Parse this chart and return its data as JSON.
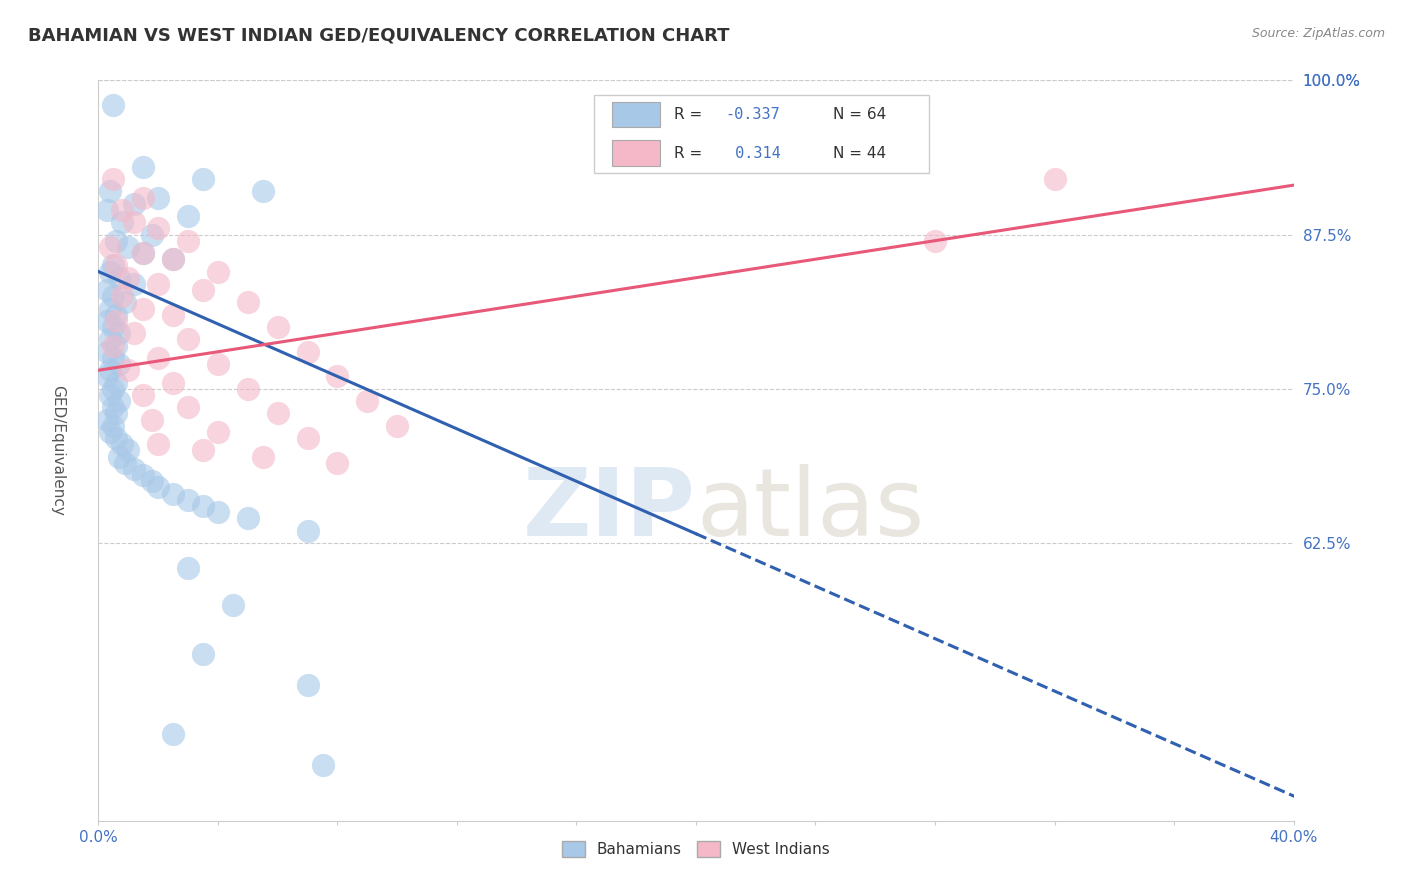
{
  "title": "BAHAMIAN VS WEST INDIAN GED/EQUIVALENCY CORRELATION CHART",
  "source": "Source: ZipAtlas.com",
  "xlabel_bahamians": "Bahamians",
  "xlabel_west_indians": "West Indians",
  "ylabel": "GED/Equivalency",
  "xlim": [
    0.0,
    40.0
  ],
  "ylim": [
    40.0,
    100.0
  ],
  "xticks": [
    0.0,
    4.0,
    8.0,
    12.0,
    16.0,
    20.0,
    24.0,
    28.0,
    32.0,
    36.0,
    40.0
  ],
  "yticks": [
    62.5,
    75.0,
    87.5,
    100.0
  ],
  "ytick_labels": [
    "62.5%",
    "75.0%",
    "87.5%",
    "100.0%"
  ],
  "xtick_labels": [
    "0.0%",
    "",
    "",
    "",
    "",
    "",
    "",
    "",
    "",
    "",
    "40.0%"
  ],
  "blue_R": -0.337,
  "blue_N": 64,
  "pink_R": 0.314,
  "pink_N": 44,
  "blue_color": "#a8c8e8",
  "pink_color": "#f4b8c8",
  "blue_line_color": "#3060b0",
  "pink_line_color": "#e85878",
  "blue_line_x0": 0.0,
  "blue_line_y0": 84.5,
  "blue_line_x1": 40.0,
  "blue_line_y1": 42.0,
  "blue_solid_end": 20.0,
  "pink_line_x0": 0.0,
  "pink_line_y0": 76.5,
  "pink_line_x1": 40.0,
  "pink_line_y1": 91.5,
  "blue_scatter": [
    [
      0.5,
      98.0
    ],
    [
      1.5,
      93.0
    ],
    [
      3.5,
      92.0
    ],
    [
      5.5,
      91.0
    ],
    [
      0.4,
      91.0
    ],
    [
      1.2,
      90.0
    ],
    [
      2.0,
      90.5
    ],
    [
      3.0,
      89.0
    ],
    [
      0.3,
      89.5
    ],
    [
      0.8,
      88.5
    ],
    [
      1.8,
      87.5
    ],
    [
      0.6,
      87.0
    ],
    [
      1.0,
      86.5
    ],
    [
      1.5,
      86.0
    ],
    [
      2.5,
      85.5
    ],
    [
      0.5,
      85.0
    ],
    [
      0.4,
      84.5
    ],
    [
      0.7,
      84.0
    ],
    [
      1.2,
      83.5
    ],
    [
      0.3,
      83.0
    ],
    [
      0.5,
      82.5
    ],
    [
      0.9,
      82.0
    ],
    [
      0.4,
      81.5
    ],
    [
      0.6,
      81.0
    ],
    [
      0.3,
      80.5
    ],
    [
      0.5,
      80.0
    ],
    [
      0.7,
      79.5
    ],
    [
      0.4,
      79.0
    ],
    [
      0.6,
      78.5
    ],
    [
      0.3,
      78.0
    ],
    [
      0.5,
      77.5
    ],
    [
      0.7,
      77.0
    ],
    [
      0.4,
      76.5
    ],
    [
      0.3,
      76.0
    ],
    [
      0.6,
      75.5
    ],
    [
      0.5,
      75.0
    ],
    [
      0.4,
      74.5
    ],
    [
      0.7,
      74.0
    ],
    [
      0.5,
      73.5
    ],
    [
      0.6,
      73.0
    ],
    [
      0.3,
      72.5
    ],
    [
      0.5,
      72.0
    ],
    [
      0.4,
      71.5
    ],
    [
      0.6,
      71.0
    ],
    [
      0.8,
      70.5
    ],
    [
      1.0,
      70.0
    ],
    [
      0.7,
      69.5
    ],
    [
      0.9,
      69.0
    ],
    [
      1.2,
      68.5
    ],
    [
      1.5,
      68.0
    ],
    [
      1.8,
      67.5
    ],
    [
      2.0,
      67.0
    ],
    [
      2.5,
      66.5
    ],
    [
      3.0,
      66.0
    ],
    [
      3.5,
      65.5
    ],
    [
      4.0,
      65.0
    ],
    [
      5.0,
      64.5
    ],
    [
      7.0,
      63.5
    ],
    [
      3.0,
      60.5
    ],
    [
      4.5,
      57.5
    ],
    [
      3.5,
      53.5
    ],
    [
      7.0,
      51.0
    ],
    [
      2.5,
      47.0
    ],
    [
      7.5,
      44.5
    ]
  ],
  "pink_scatter": [
    [
      0.5,
      92.0
    ],
    [
      1.5,
      90.5
    ],
    [
      0.8,
      89.5
    ],
    [
      1.2,
      88.5
    ],
    [
      2.0,
      88.0
    ],
    [
      3.0,
      87.0
    ],
    [
      0.4,
      86.5
    ],
    [
      1.5,
      86.0
    ],
    [
      2.5,
      85.5
    ],
    [
      0.6,
      85.0
    ],
    [
      4.0,
      84.5
    ],
    [
      1.0,
      84.0
    ],
    [
      2.0,
      83.5
    ],
    [
      3.5,
      83.0
    ],
    [
      0.8,
      82.5
    ],
    [
      5.0,
      82.0
    ],
    [
      1.5,
      81.5
    ],
    [
      2.5,
      81.0
    ],
    [
      0.6,
      80.5
    ],
    [
      6.0,
      80.0
    ],
    [
      1.2,
      79.5
    ],
    [
      3.0,
      79.0
    ],
    [
      0.5,
      78.5
    ],
    [
      7.0,
      78.0
    ],
    [
      2.0,
      77.5
    ],
    [
      4.0,
      77.0
    ],
    [
      1.0,
      76.5
    ],
    [
      8.0,
      76.0
    ],
    [
      2.5,
      75.5
    ],
    [
      5.0,
      75.0
    ],
    [
      1.5,
      74.5
    ],
    [
      9.0,
      74.0
    ],
    [
      3.0,
      73.5
    ],
    [
      6.0,
      73.0
    ],
    [
      1.8,
      72.5
    ],
    [
      10.0,
      72.0
    ],
    [
      4.0,
      71.5
    ],
    [
      7.0,
      71.0
    ],
    [
      2.0,
      70.5
    ],
    [
      3.5,
      70.0
    ],
    [
      5.5,
      69.5
    ],
    [
      8.0,
      69.0
    ],
    [
      28.0,
      87.0
    ],
    [
      32.0,
      92.0
    ]
  ],
  "watermark_zip": "ZIP",
  "watermark_atlas": "atlas",
  "background_color": "#ffffff",
  "grid_color": "#cccccc",
  "title_color": "#333333",
  "axis_color": "#4472c4",
  "legend_R_color": "#4472c4"
}
